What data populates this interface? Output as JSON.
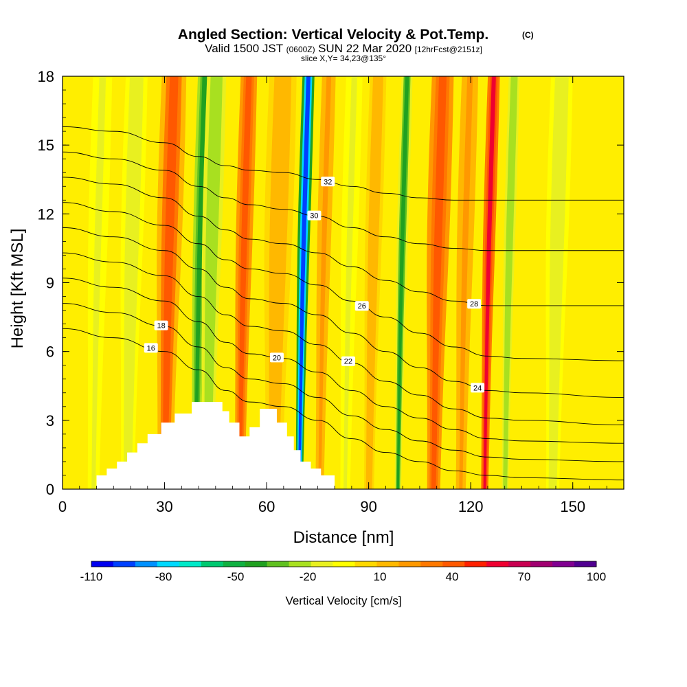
{
  "chart_data": {
    "type": "heatmap",
    "title": "Angled Section: Vertical Velocity & Pot.Temp.",
    "title_note": "(C)",
    "subtitle_parts": [
      "Valid 1500 JST",
      "(0600Z)",
      "SUN 22 Mar 2020",
      "[12hrFcst@2151z]"
    ],
    "subtitle2": "slice X,Y= 34,23@135°",
    "xlabel": "Distance [nm]",
    "ylabel": "Height [Kft MSL]",
    "xlim": [
      0,
      165
    ],
    "ylim": [
      0,
      18
    ],
    "xticks": [
      "0",
      "30",
      "60",
      "90",
      "120",
      "150"
    ],
    "yticks": [
      "0",
      "3",
      "6",
      "9",
      "12",
      "15",
      "18"
    ],
    "colorbar": {
      "title": "Vertical Velocity [cm/s]",
      "tick_labels": [
        "-110",
        "-80",
        "-50",
        "-20",
        "10",
        "40",
        "70",
        "100"
      ],
      "colors": [
        "#0000ee",
        "#0040ff",
        "#0090ff",
        "#00d8ff",
        "#00e8c8",
        "#00c870",
        "#10b040",
        "#20a020",
        "#60c020",
        "#a8e020",
        "#e8f020",
        "#ffff00",
        "#ffd800",
        "#ffb800",
        "#ff9800",
        "#ff7800",
        "#ff5800",
        "#ff2000",
        "#ee0030",
        "#c80050",
        "#a00070",
        "#800090",
        "#500090"
      ]
    },
    "velocity_bands": [
      {
        "x": 10,
        "w": 3.5,
        "v": -12
      },
      {
        "x": 20,
        "w": 4,
        "v": -15
      },
      {
        "x": 31,
        "w": 4.5,
        "v": 38
      },
      {
        "x": 40,
        "w": 2.5,
        "v": -45
      },
      {
        "x": 43.5,
        "w": 3.5,
        "v": -25
      },
      {
        "x": 53,
        "w": 3,
        "v": 45
      },
      {
        "x": 63,
        "w": 5,
        "v": 12
      },
      {
        "x": 70.5,
        "w": 2.2,
        "v": -100
      },
      {
        "x": 76.5,
        "w": 2.5,
        "v": 20
      },
      {
        "x": 84,
        "w": 3,
        "v": -10
      },
      {
        "x": 91,
        "w": 3,
        "v": 12
      },
      {
        "x": 99.5,
        "w": 2,
        "v": -40
      },
      {
        "x": 110,
        "w": 4,
        "v": 42
      },
      {
        "x": 118,
        "w": 3,
        "v": 22
      },
      {
        "x": 125,
        "w": 2.2,
        "v": 60
      },
      {
        "x": 131,
        "w": 2,
        "v": -25
      },
      {
        "x": 145,
        "w": 4,
        "v": -15
      }
    ],
    "terrain": [
      [
        10,
        0.6
      ],
      [
        13,
        0.6
      ],
      [
        13,
        0.9
      ],
      [
        16,
        0.9
      ],
      [
        16,
        1.2
      ],
      [
        19,
        1.2
      ],
      [
        19,
        1.6
      ],
      [
        22,
        1.6
      ],
      [
        22,
        2.0
      ],
      [
        25,
        2.0
      ],
      [
        25,
        2.4
      ],
      [
        29,
        2.4
      ],
      [
        29,
        2.9
      ],
      [
        33,
        2.9
      ],
      [
        33,
        3.3
      ],
      [
        38,
        3.3
      ],
      [
        38,
        3.8
      ],
      [
        47,
        3.8
      ],
      [
        47,
        3.4
      ],
      [
        49,
        3.4
      ],
      [
        49,
        2.9
      ],
      [
        52,
        2.9
      ],
      [
        52,
        2.3
      ],
      [
        55,
        2.3
      ],
      [
        55,
        2.7
      ],
      [
        58,
        2.7
      ],
      [
        58,
        3.5
      ],
      [
        63,
        3.5
      ],
      [
        63,
        2.9
      ],
      [
        66,
        2.9
      ],
      [
        66,
        2.3
      ],
      [
        68,
        2.3
      ],
      [
        68,
        1.7
      ],
      [
        70,
        1.7
      ],
      [
        70,
        1.2
      ],
      [
        73,
        1.2
      ],
      [
        73,
        0.9
      ],
      [
        76,
        0.9
      ],
      [
        76,
        0.6
      ],
      [
        80,
        0.6
      ]
    ],
    "isentropes": [
      {
        "label": "16",
        "pts": [
          [
            0,
            7.0
          ],
          [
            15,
            6.6
          ],
          [
            30,
            6.0
          ],
          [
            40,
            5.2
          ],
          [
            48,
            4.3
          ],
          [
            55,
            3.8
          ],
          [
            65,
            3.6
          ],
          [
            75,
            3.0
          ],
          [
            85,
            2.2
          ],
          [
            95,
            1.6
          ],
          [
            105,
            1.2
          ],
          [
            115,
            0.8
          ],
          [
            125,
            0.6
          ],
          [
            135,
            0.5
          ],
          [
            165,
            0.4
          ]
        ],
        "lx": 26
      },
      {
        "label": "18",
        "pts": [
          [
            0,
            8.1
          ],
          [
            15,
            7.7
          ],
          [
            30,
            7.1
          ],
          [
            40,
            6.2
          ],
          [
            48,
            5.3
          ],
          [
            55,
            4.8
          ],
          [
            65,
            4.6
          ],
          [
            75,
            4.0
          ],
          [
            85,
            3.2
          ],
          [
            95,
            2.6
          ],
          [
            105,
            2.1
          ],
          [
            115,
            1.7
          ],
          [
            125,
            1.4
          ],
          [
            135,
            1.3
          ],
          [
            165,
            1.2
          ]
        ],
        "lx": 29
      },
      {
        "label": "20",
        "pts": [
          [
            0,
            9.2
          ],
          [
            15,
            8.8
          ],
          [
            30,
            8.2
          ],
          [
            40,
            7.3
          ],
          [
            48,
            6.4
          ],
          [
            55,
            5.9
          ],
          [
            65,
            5.7
          ],
          [
            75,
            5.1
          ],
          [
            85,
            4.3
          ],
          [
            95,
            3.6
          ],
          [
            105,
            3.1
          ],
          [
            115,
            2.6
          ],
          [
            125,
            2.2
          ],
          [
            135,
            2.1
          ],
          [
            165,
            2.0
          ]
        ],
        "lx": 63
      },
      {
        "label": "22",
        "pts": [
          [
            0,
            10.3
          ],
          [
            15,
            9.9
          ],
          [
            30,
            9.3
          ],
          [
            40,
            8.4
          ],
          [
            48,
            7.6
          ],
          [
            55,
            7.1
          ],
          [
            65,
            6.9
          ],
          [
            75,
            6.3
          ],
          [
            85,
            5.5
          ],
          [
            95,
            4.7
          ],
          [
            105,
            4.1
          ],
          [
            115,
            3.5
          ],
          [
            125,
            3.1
          ],
          [
            135,
            3.0
          ],
          [
            165,
            2.8
          ]
        ],
        "lx": 84
      },
      {
        "label": "24",
        "pts": [
          [
            0,
            11.4
          ],
          [
            15,
            11.0
          ],
          [
            30,
            10.4
          ],
          [
            40,
            9.6
          ],
          [
            48,
            8.8
          ],
          [
            55,
            8.3
          ],
          [
            65,
            8.1
          ],
          [
            75,
            7.6
          ],
          [
            85,
            6.8
          ],
          [
            95,
            6.0
          ],
          [
            105,
            5.3
          ],
          [
            115,
            4.7
          ],
          [
            125,
            4.3
          ],
          [
            135,
            4.2
          ],
          [
            165,
            4.0
          ]
        ],
        "lx": 122
      },
      {
        "label": "26",
        "pts": [
          [
            0,
            12.5
          ],
          [
            15,
            12.1
          ],
          [
            30,
            11.5
          ],
          [
            40,
            10.7
          ],
          [
            48,
            10.0
          ],
          [
            55,
            9.6
          ],
          [
            65,
            9.4
          ],
          [
            75,
            8.9
          ],
          [
            85,
            8.2
          ],
          [
            95,
            7.5
          ],
          [
            105,
            6.8
          ],
          [
            115,
            6.2
          ],
          [
            125,
            5.8
          ],
          [
            135,
            5.7
          ],
          [
            165,
            5.6
          ]
        ],
        "lx": 88
      },
      {
        "label": "28",
        "pts": [
          [
            0,
            13.6
          ],
          [
            15,
            13.3
          ],
          [
            30,
            12.7
          ],
          [
            40,
            11.9
          ],
          [
            48,
            11.3
          ],
          [
            55,
            10.9
          ],
          [
            65,
            10.7
          ],
          [
            75,
            10.3
          ],
          [
            85,
            9.7
          ],
          [
            95,
            9.1
          ],
          [
            105,
            8.6
          ],
          [
            115,
            8.2
          ],
          [
            125,
            8.0
          ],
          [
            135,
            8.0
          ],
          [
            165,
            8.0
          ]
        ],
        "lx": 121
      },
      {
        "label": "30",
        "pts": [
          [
            0,
            14.7
          ],
          [
            15,
            14.4
          ],
          [
            30,
            13.9
          ],
          [
            40,
            13.2
          ],
          [
            48,
            12.7
          ],
          [
            55,
            12.4
          ],
          [
            65,
            12.2
          ],
          [
            75,
            11.9
          ],
          [
            85,
            11.4
          ],
          [
            95,
            11.0
          ],
          [
            105,
            10.7
          ],
          [
            115,
            10.5
          ],
          [
            125,
            10.4
          ],
          [
            135,
            10.4
          ],
          [
            165,
            10.4
          ]
        ],
        "lx": 74
      },
      {
        "label": "32",
        "pts": [
          [
            0,
            15.8
          ],
          [
            15,
            15.6
          ],
          [
            30,
            15.1
          ],
          [
            40,
            14.5
          ],
          [
            48,
            14.1
          ],
          [
            55,
            13.9
          ],
          [
            65,
            13.8
          ],
          [
            75,
            13.5
          ],
          [
            85,
            13.2
          ],
          [
            95,
            12.9
          ],
          [
            105,
            12.7
          ],
          [
            115,
            12.6
          ],
          [
            125,
            12.6
          ],
          [
            135,
            12.6
          ],
          [
            165,
            12.6
          ]
        ],
        "lx": 78
      }
    ]
  }
}
